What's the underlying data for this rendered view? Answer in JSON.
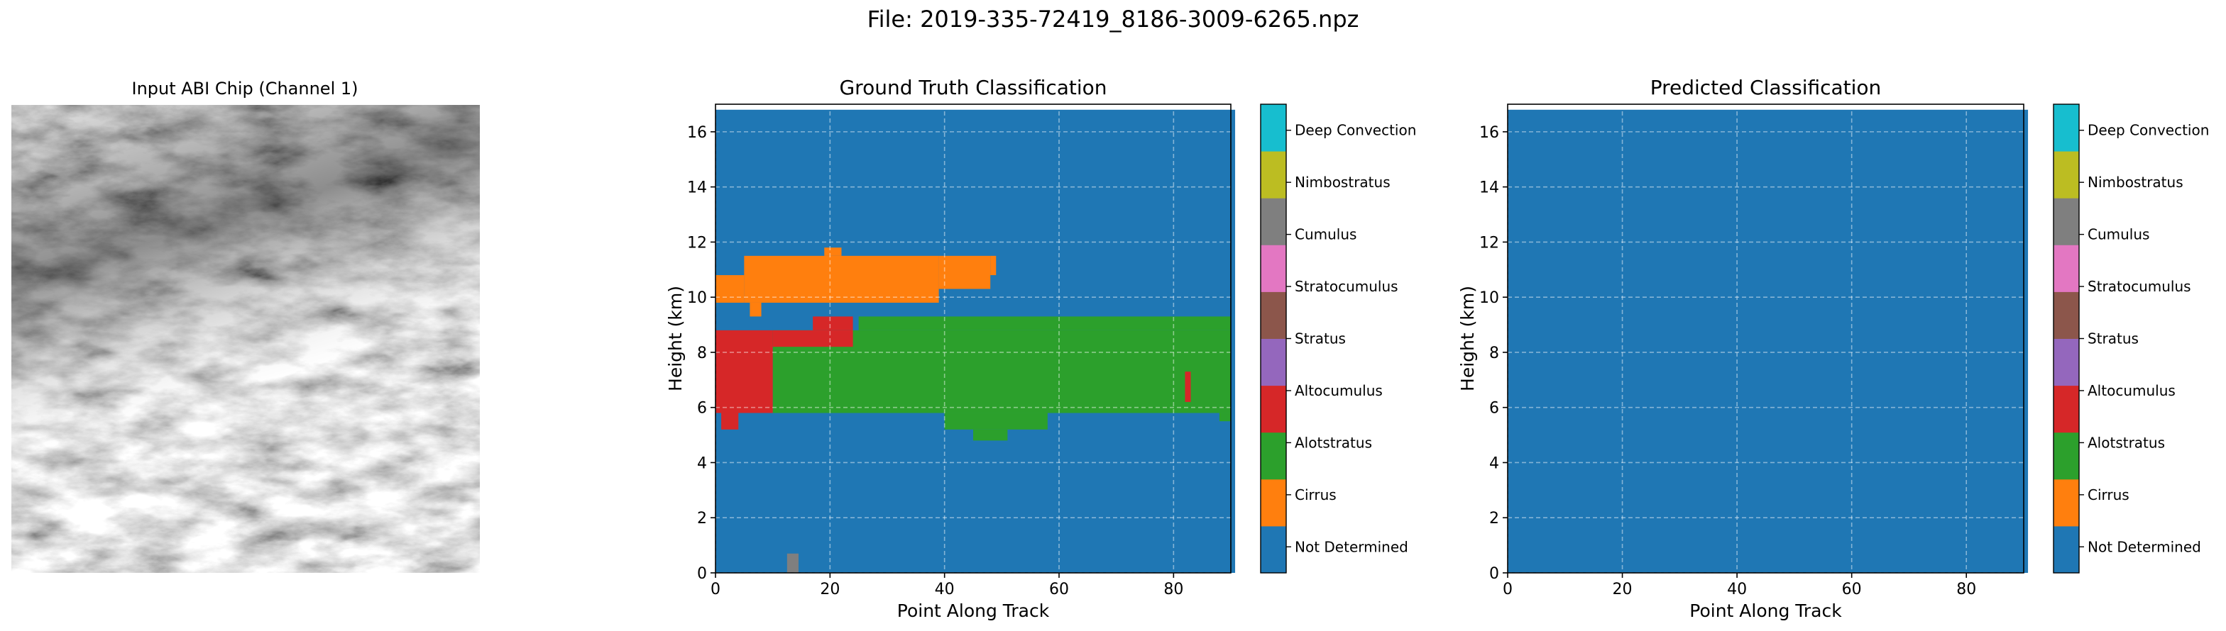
{
  "figure": {
    "suptitle": "File: 2019-335-72419_8186-3009-6265.npz"
  },
  "image_panel": {
    "title": "Input ABI Chip (Channel 1)"
  },
  "colors": {
    "Not Determined": "#1f77b4",
    "Cirrus": "#ff7f0e",
    "Alotstratus": "#2ca02c",
    "Altocumulus": "#d62728",
    "Stratus": "#9467bd",
    "Stratocumulus": "#8c564b",
    "Cumulus": "#e377c2",
    "Nimbostratus": "#7f7f7f",
    "Deep Convection": "#bcbd22",
    "extra": "#17becf"
  },
  "chart_data": [
    {
      "type": "heatmap",
      "title": "Ground Truth Classification",
      "xlabel": "Point Along Track",
      "ylabel": "Height (km)",
      "xlim": [
        0,
        90
      ],
      "ylim": [
        0,
        17
      ],
      "xticks": [
        0,
        20,
        40,
        60,
        80
      ],
      "yticks": [
        0,
        2,
        4,
        6,
        8,
        10,
        12,
        14,
        16
      ],
      "grid": true,
      "background_class": "Not Determined",
      "regions": [
        {
          "class": "Cirrus",
          "x": [
            0,
            5
          ],
          "y": [
            9.8,
            10.8
          ]
        },
        {
          "class": "Cirrus",
          "x": [
            5,
            39
          ],
          "y": [
            9.8,
            11.5
          ]
        },
        {
          "class": "Cirrus",
          "x": [
            39,
            48
          ],
          "y": [
            10.3,
            11.5
          ]
        },
        {
          "class": "Cirrus",
          "x": [
            48,
            49
          ],
          "y": [
            10.8,
            11.5
          ]
        },
        {
          "class": "Cirrus",
          "x": [
            19,
            22
          ],
          "y": [
            11.5,
            11.8
          ]
        },
        {
          "class": "Cirrus",
          "x": [
            6,
            8
          ],
          "y": [
            9.3,
            9.8
          ]
        },
        {
          "class": "Alotstratus",
          "x": [
            10,
            90
          ],
          "y": [
            5.8,
            8.8
          ]
        },
        {
          "class": "Alotstratus",
          "x": [
            25,
            90
          ],
          "y": [
            8.8,
            9.3
          ]
        },
        {
          "class": "Alotstratus",
          "x": [
            40,
            58
          ],
          "y": [
            5.2,
            5.8
          ]
        },
        {
          "class": "Alotstratus",
          "x": [
            45,
            51
          ],
          "y": [
            4.8,
            5.2
          ]
        },
        {
          "class": "Alotstratus",
          "x": [
            88,
            90
          ],
          "y": [
            5.5,
            5.8
          ]
        },
        {
          "class": "Altocumulus",
          "x": [
            0,
            10
          ],
          "y": [
            5.8,
            8.8
          ]
        },
        {
          "class": "Altocumulus",
          "x": [
            10,
            24
          ],
          "y": [
            8.2,
            8.8
          ]
        },
        {
          "class": "Altocumulus",
          "x": [
            17,
            24
          ],
          "y": [
            8.8,
            9.3
          ]
        },
        {
          "class": "Altocumulus",
          "x": [
            1,
            4
          ],
          "y": [
            5.2,
            5.8
          ]
        },
        {
          "class": "Altocumulus",
          "x": [
            82,
            83
          ],
          "y": [
            6.2,
            7.3
          ]
        },
        {
          "class": "Nimbostratus",
          "x": [
            12.5,
            14.5
          ],
          "y": [
            0,
            0.7
          ]
        }
      ]
    },
    {
      "type": "heatmap",
      "title": "Predicted Classification",
      "xlabel": "Point Along Track",
      "ylabel": "Height (km)",
      "xlim": [
        0,
        90
      ],
      "ylim": [
        0,
        17
      ],
      "xticks": [
        0,
        20,
        40,
        60,
        80
      ],
      "yticks": [
        0,
        2,
        4,
        6,
        8,
        10,
        12,
        14,
        16
      ],
      "grid": true,
      "background_class": "Not Determined",
      "regions": []
    }
  ],
  "colorbar": {
    "labels": [
      "Not Determined",
      "Cirrus",
      "Alotstratus",
      "Altocumulus",
      "Stratus",
      "Stratocumulus",
      "Cumulus",
      "Nimbostratus",
      "Deep Convection"
    ]
  }
}
